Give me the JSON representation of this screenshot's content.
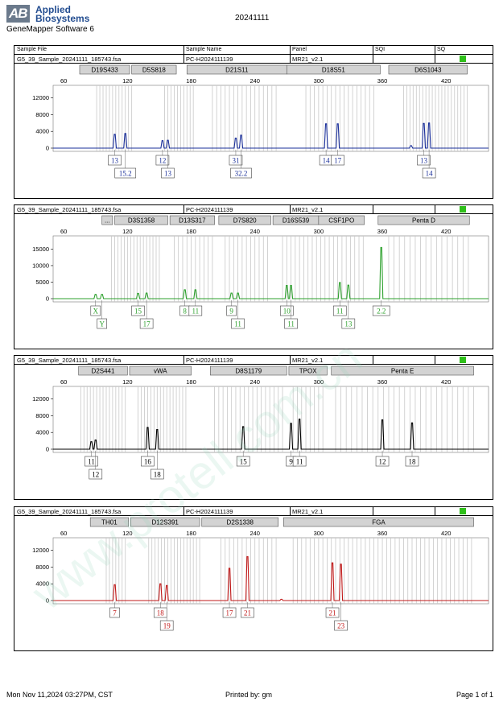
{
  "header": {
    "logo_line1": "Applied",
    "logo_line2": "Biosystems",
    "logo_mark": "AB",
    "software": "GeneMapper Software 6",
    "run_name": "20241111"
  },
  "columns": [
    "Sample File",
    "Sample Name",
    "Panel",
    "SQI",
    "SQ"
  ],
  "panels": [
    {
      "sample_file": "G5_39_Sample_20241111_185743.fsa",
      "sample_name": "PC-H2024111139",
      "panel": "MR21_v2.1",
      "dye_color": "#1a2f9a",
      "ymax": 15000,
      "y_ticks": [
        0,
        4000,
        8000,
        12000
      ],
      "markers": [
        {
          "name": "D19S433",
          "start": 75,
          "end": 122
        },
        {
          "name": "D5S818",
          "start": 124,
          "end": 166
        },
        {
          "name": "D21S11",
          "start": 176,
          "end": 270
        },
        {
          "name": "D18S51",
          "start": 270,
          "end": 358
        },
        {
          "name": "D6S1043",
          "start": 366,
          "end": 440
        }
      ],
      "bins": [
        {
          "start": 91,
          "end": 124,
          "step": 3
        },
        {
          "start": 155,
          "end": 182,
          "step": 3
        },
        {
          "start": 200,
          "end": 263,
          "step": 4
        },
        {
          "start": 288,
          "end": 352,
          "step": 4
        },
        {
          "start": 380,
          "end": 440,
          "step": 3
        }
      ],
      "peaks": [
        {
          "size": 108,
          "height": 3300
        },
        {
          "size": 118,
          "height": 3500
        },
        {
          "size": 153,
          "height": 1800
        },
        {
          "size": 158,
          "height": 1900
        },
        {
          "size": 222,
          "height": 2400
        },
        {
          "size": 227,
          "height": 3100
        },
        {
          "size": 307,
          "height": 5800
        },
        {
          "size": 318,
          "height": 5800
        },
        {
          "size": 387,
          "height": 600
        },
        {
          "size": 399,
          "height": 5900
        },
        {
          "size": 404,
          "height": 6000
        }
      ],
      "alleles": [
        {
          "label": "13",
          "size": 108,
          "row": 0
        },
        {
          "label": "15.2",
          "size": 118,
          "row": 1
        },
        {
          "label": "12",
          "size": 153,
          "row": 0
        },
        {
          "label": "13",
          "size": 158,
          "row": 1
        },
        {
          "label": "31",
          "size": 222,
          "row": 0
        },
        {
          "label": "32.2",
          "size": 227,
          "row": 1
        },
        {
          "label": "14",
          "size": 307,
          "row": 0
        },
        {
          "label": "17",
          "size": 318,
          "row": 0
        },
        {
          "label": "13",
          "size": 399,
          "row": 0
        },
        {
          "label": "14",
          "size": 404,
          "row": 1
        }
      ]
    },
    {
      "sample_file": "G5_39_Sample_20241111_185743.fsa",
      "sample_name": "PC-H2024111139",
      "panel": "MR21_v2.1",
      "dye_color": "#2ca02c",
      "ymax": 19000,
      "y_ticks": [
        0,
        5000,
        10000,
        15000
      ],
      "markers": [
        {
          "name": "...",
          "start": 96,
          "end": 106
        },
        {
          "name": "D3S1358",
          "start": 108,
          "end": 158
        },
        {
          "name": "D13S317",
          "start": 160,
          "end": 202
        },
        {
          "name": "D7S820",
          "start": 206,
          "end": 255
        },
        {
          "name": "D16S539",
          "start": 257,
          "end": 300
        },
        {
          "name": "CSF1PO",
          "start": 300,
          "end": 343
        },
        {
          "name": "Penta D",
          "start": 356,
          "end": 442
        }
      ],
      "bins": [
        {
          "start": 105,
          "end": 152,
          "step": 3
        },
        {
          "start": 164,
          "end": 202,
          "step": 4
        },
        {
          "start": 212,
          "end": 252,
          "step": 4
        },
        {
          "start": 266,
          "end": 306,
          "step": 4
        },
        {
          "start": 310,
          "end": 345,
          "step": 4
        },
        {
          "start": 366,
          "end": 442,
          "step": 5
        }
      ],
      "peaks": [
        {
          "size": 90,
          "height": 1300
        },
        {
          "size": 96,
          "height": 1300
        },
        {
          "size": 130,
          "height": 1600
        },
        {
          "size": 138,
          "height": 1700
        },
        {
          "size": 174,
          "height": 2700
        },
        {
          "size": 184,
          "height": 2700
        },
        {
          "size": 218,
          "height": 1700
        },
        {
          "size": 224,
          "height": 1700
        },
        {
          "size": 270,
          "height": 4000
        },
        {
          "size": 274,
          "height": 4000
        },
        {
          "size": 320,
          "height": 4900
        },
        {
          "size": 328,
          "height": 4100
        },
        {
          "size": 359,
          "height": 15500
        }
      ],
      "alleles": [
        {
          "label": "X",
          "size": 90,
          "row": 0
        },
        {
          "label": "Y",
          "size": 96,
          "row": 1
        },
        {
          "label": "15",
          "size": 130,
          "row": 0
        },
        {
          "label": "17",
          "size": 138,
          "row": 1
        },
        {
          "label": "8",
          "size": 174,
          "row": 0
        },
        {
          "label": "11",
          "size": 184,
          "row": 0
        },
        {
          "label": "9",
          "size": 218,
          "row": 0
        },
        {
          "label": "11",
          "size": 224,
          "row": 1
        },
        {
          "label": "10",
          "size": 270,
          "row": 0
        },
        {
          "label": "11",
          "size": 274,
          "row": 1
        },
        {
          "label": "11",
          "size": 320,
          "row": 0
        },
        {
          "label": "13",
          "size": 328,
          "row": 1
        },
        {
          "label": "2.2",
          "size": 359,
          "row": 0
        }
      ]
    },
    {
      "sample_file": "G5_39_Sample_20241111_185743.fsa",
      "sample_name": "PC-H2024111139",
      "panel": "MR21_v2.1",
      "dye_color": "#000000",
      "ymax": 15000,
      "y_ticks": [
        0,
        4000,
        8000,
        12000
      ],
      "markers": [
        {
          "name": "D2S441",
          "start": 74,
          "end": 120
        },
        {
          "name": "vWA",
          "start": 122,
          "end": 180
        },
        {
          "name": "D8S1179",
          "start": 198,
          "end": 270
        },
        {
          "name": "TPOX",
          "start": 272,
          "end": 308
        },
        {
          "name": "Penta E",
          "start": 312,
          "end": 446
        }
      ],
      "bins": [
        {
          "start": 76,
          "end": 120,
          "step": 3
        },
        {
          "start": 130,
          "end": 176,
          "step": 3
        },
        {
          "start": 202,
          "end": 266,
          "step": 4
        },
        {
          "start": 276,
          "end": 304,
          "step": 4
        },
        {
          "start": 316,
          "end": 446,
          "step": 5
        }
      ],
      "peaks": [
        {
          "size": 86,
          "height": 1800
        },
        {
          "size": 90,
          "height": 2200
        },
        {
          "size": 139,
          "height": 5200
        },
        {
          "size": 148,
          "height": 4700
        },
        {
          "size": 229,
          "height": 5400
        },
        {
          "size": 274,
          "height": 6200
        },
        {
          "size": 282,
          "height": 7200
        },
        {
          "size": 360,
          "height": 7000
        },
        {
          "size": 388,
          "height": 6300
        }
      ],
      "alleles": [
        {
          "label": "11",
          "size": 86,
          "row": 0
        },
        {
          "label": "12",
          "size": 90,
          "row": 1
        },
        {
          "label": "16",
          "size": 139,
          "row": 0
        },
        {
          "label": "18",
          "size": 148,
          "row": 1
        },
        {
          "label": "15",
          "size": 229,
          "row": 0
        },
        {
          "label": "9",
          "size": 274,
          "row": 0
        },
        {
          "label": "11",
          "size": 282,
          "row": 0
        },
        {
          "label": "12",
          "size": 360,
          "row": 0
        },
        {
          "label": "18",
          "size": 388,
          "row": 0
        }
      ]
    },
    {
      "sample_file": "G5_39_Sample_20241111_185743.fsa",
      "sample_name": "PC-H2024111139",
      "panel": "MR21_v2.1",
      "dye_color": "#c01818",
      "ymax": 15000,
      "y_ticks": [
        0,
        4000,
        8000,
        12000
      ],
      "markers": [
        {
          "name": "TH01",
          "start": 85,
          "end": 121
        },
        {
          "name": "D12S391",
          "start": 123,
          "end": 188
        },
        {
          "name": "D2S1338",
          "start": 190,
          "end": 262
        },
        {
          "name": "FGA",
          "start": 267,
          "end": 446
        }
      ],
      "bins": [
        {
          "start": 100,
          "end": 118,
          "step": 3
        },
        {
          "start": 140,
          "end": 190,
          "step": 3
        },
        {
          "start": 208,
          "end": 262,
          "step": 4
        },
        {
          "start": 276,
          "end": 446,
          "step": 4
        }
      ],
      "peaks": [
        {
          "size": 108,
          "height": 3800
        },
        {
          "size": 151,
          "height": 4000
        },
        {
          "size": 157,
          "height": 3600
        },
        {
          "size": 216,
          "height": 7700
        },
        {
          "size": 233,
          "height": 10500
        },
        {
          "size": 265,
          "height": 300
        },
        {
          "size": 313,
          "height": 9000
        },
        {
          "size": 321,
          "height": 8700
        }
      ],
      "alleles": [
        {
          "label": "7",
          "size": 108,
          "row": 0
        },
        {
          "label": "18",
          "size": 151,
          "row": 0
        },
        {
          "label": "19",
          "size": 157,
          "row": 1
        },
        {
          "label": "17",
          "size": 216,
          "row": 0
        },
        {
          "label": "21",
          "size": 233,
          "row": 0
        },
        {
          "label": "21",
          "size": 313,
          "row": 0
        },
        {
          "label": "23",
          "size": 321,
          "row": 1
        }
      ]
    }
  ],
  "x_ticks": [
    60,
    120,
    180,
    240,
    300,
    360,
    420
  ],
  "xmin": 50,
  "xmax": 460,
  "footer": {
    "printed_at": "Mon Nov 11,2024 03:27PM, CST",
    "printed_by": "Printed by: gm",
    "page": "Page 1 of 1"
  },
  "watermark": "www.protell.com.cn"
}
